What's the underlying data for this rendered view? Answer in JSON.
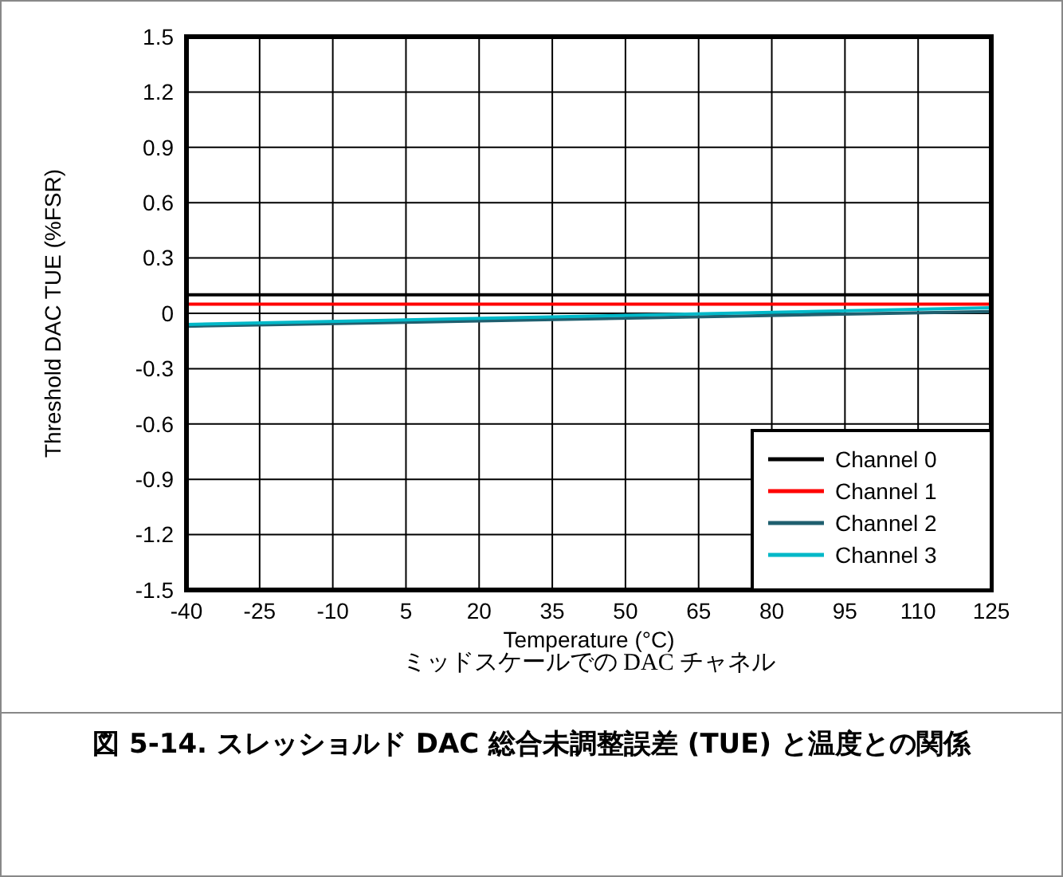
{
  "chart_data": {
    "type": "line",
    "title": "図 5-14. スレッショルド DAC 総合未調整誤差 (TUE) と温度との関係",
    "subtitle": "ミッドスケールでの DAC チャネル",
    "xlabel": "Temperature (°C)",
    "ylabel": "Threshold DAC TUE (%FSR)",
    "x": [
      -40,
      125
    ],
    "series": [
      {
        "name": "Channel 0",
        "color": "#000000",
        "values": [
          0.1,
          0.1
        ]
      },
      {
        "name": "Channel 1",
        "color": "#ff0000",
        "values": [
          0.05,
          0.05
        ]
      },
      {
        "name": "Channel 2",
        "color": "#1f5f6f",
        "values": [
          -0.07,
          0.01
        ]
      },
      {
        "name": "Channel 3",
        "color": "#00b8c8",
        "values": [
          -0.06,
          0.03
        ]
      }
    ],
    "xlim": [
      -40,
      125
    ],
    "xticks": [
      -40,
      -25,
      -10,
      5,
      20,
      35,
      50,
      65,
      80,
      95,
      110,
      125
    ],
    "ylim": [
      -1.5,
      1.5
    ],
    "yticks": [
      -1.5,
      -1.2,
      -0.9,
      -0.6,
      -0.3,
      0,
      0.3,
      0.6,
      0.9,
      1.2,
      1.5
    ],
    "grid": true,
    "legend": "bottom right",
    "line_style": "solid",
    "marker": "none"
  }
}
